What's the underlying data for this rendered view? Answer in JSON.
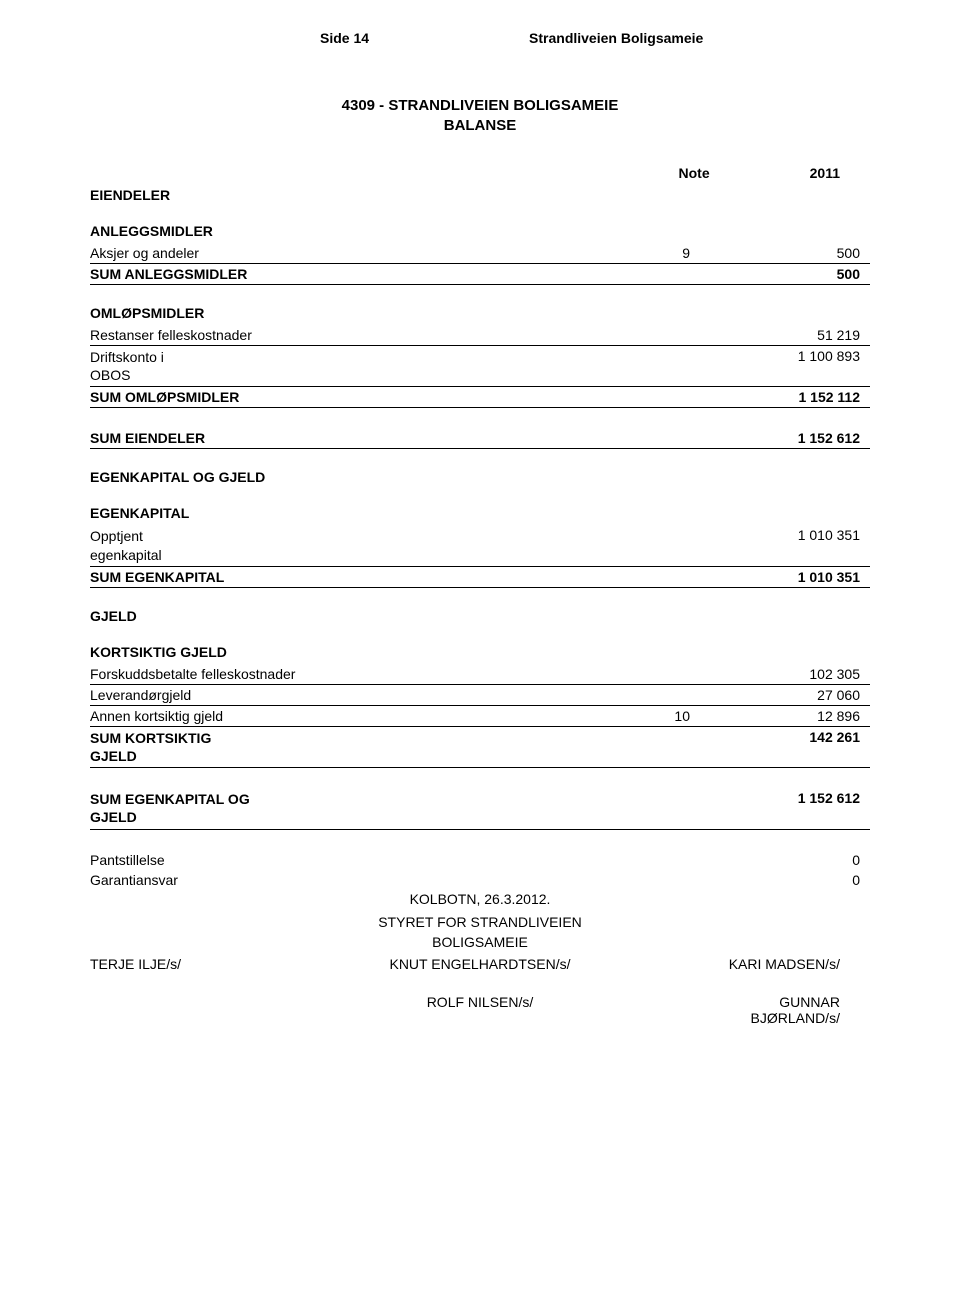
{
  "header": {
    "page_label": "Side 14",
    "entity": "Strandliveien Boligsameie"
  },
  "title": {
    "line1": "4309  -  STRANDLIVEIEN BOLIGSAMEIE",
    "line2": "BALANSE"
  },
  "column_headers": {
    "note": "Note",
    "year": "2011"
  },
  "eiendeler": {
    "title": "EIENDELER",
    "anleggsmidler": {
      "title": "ANLEGGSMIDLER",
      "rows": [
        {
          "label": "Aksjer og andeler",
          "note": "9",
          "value": "500"
        }
      ],
      "sum": {
        "label": "SUM ANLEGGSMIDLER",
        "value": "500"
      }
    },
    "omlopsmidler": {
      "title": "OMLØPSMIDLER",
      "rows": [
        {
          "label": "Restanser felleskostnader",
          "value": "51 219"
        },
        {
          "label_1": "Driftskonto i",
          "label_2": "OBOS",
          "value": "1 100 893"
        }
      ],
      "sum": {
        "label": "SUM OMLØPSMIDLER",
        "value": "1 152 112"
      }
    },
    "sum": {
      "label": "SUM EIENDELER",
      "value": "1 152 612"
    }
  },
  "egenkapital_gjeld": {
    "title": "EGENKAPITAL OG GJELD",
    "egenkapital": {
      "title": "EGENKAPITAL",
      "rows": [
        {
          "label_1": "Opptjent",
          "label_2": "egenkapital",
          "value": "1 010 351"
        }
      ],
      "sum": {
        "label": "SUM EGENKAPITAL",
        "value": "1 010 351"
      }
    },
    "gjeld": {
      "title": "GJELD",
      "kortsiktig": {
        "title": "KORTSIKTIG GJELD",
        "rows": [
          {
            "label": "Forskuddsbetalte felleskostnader",
            "value": "102 305"
          },
          {
            "label": "Leverandørgjeld",
            "value": "27 060"
          },
          {
            "label": "Annen kortsiktig gjeld",
            "note": "10",
            "value": "12 896"
          }
        ],
        "sum": {
          "label_1": "SUM KORTSIKTIG",
          "label_2": "GJELD",
          "value": "142 261"
        }
      }
    },
    "sum": {
      "label_1": "SUM EGENKAPITAL OG",
      "label_2": "GJELD",
      "value": "1 152 612"
    }
  },
  "footer": {
    "pantstillelse": {
      "label": "Pantstillelse",
      "value": "0"
    },
    "garantiansvar": {
      "label": "Garantiansvar",
      "value": "0"
    },
    "place_date": "KOLBOTN, 26.3.2012.",
    "styre_line1": "STYRET FOR STRANDLIVEIEN",
    "styre_line2": "BOLIGSAMEIE",
    "sig1": {
      "left": "TERJE ILJE/s/",
      "center": "KNUT ENGELHARDTSEN/s/",
      "right": "KARI MADSEN/s/"
    },
    "sig2": {
      "center": "ROLF NILSEN/s/",
      "right_1": "GUNNAR",
      "right_2": "BJØRLAND/s/"
    }
  }
}
